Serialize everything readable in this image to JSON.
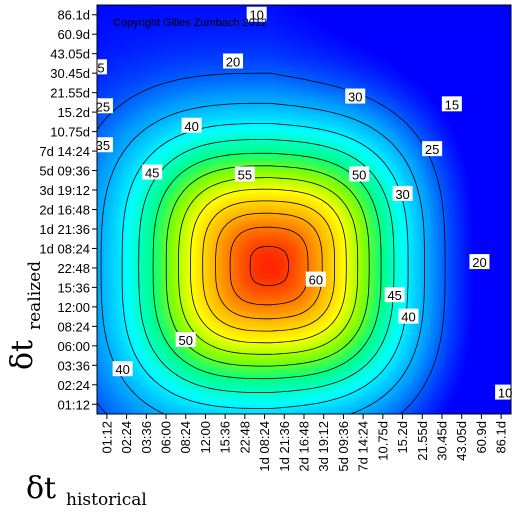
{
  "chart_data": {
    "type": "heatmap",
    "title": "",
    "copyright": "Copyright Gilles Zumbach 2012",
    "xlabel": {
      "main": "δt",
      "sub": "historical"
    },
    "ylabel": {
      "main": "δt",
      "sub": "realized"
    },
    "x_ticks": [
      "01:12",
      "02:24",
      "03:36",
      "06:00",
      "08:24",
      "12:00",
      "15:36",
      "22:48",
      "1d 08:24",
      "1d 21:36",
      "2d 16:48",
      "3d 19:12",
      "5d 09:36",
      "7d 14:24",
      "10.75d",
      "15.2d",
      "21.55d",
      "30.45d",
      "43.05d",
      "60.9d",
      "86.1d"
    ],
    "y_ticks": [
      "01:12",
      "02:24",
      "03:36",
      "06:00",
      "08:24",
      "12:00",
      "15:36",
      "22:48",
      "1d 08:24",
      "1d 21:36",
      "2d 16:48",
      "3d 19:12",
      "5d 09:36",
      "7d 14:24",
      "10.75d",
      "15.2d",
      "21.55d",
      "30.45d",
      "43.05d",
      "60.9d",
      "86.1d"
    ],
    "contour_levels": [
      5,
      10,
      15,
      20,
      25,
      30,
      35,
      40,
      45,
      50,
      55,
      60
    ],
    "contour_labels": [
      {
        "text": "10",
        "x": 7.6,
        "y": 20.0
      },
      {
        "text": "20",
        "x": 6.4,
        "y": 17.6
      },
      {
        "text": "30",
        "x": 12.6,
        "y": 15.8
      },
      {
        "text": "15",
        "x": 17.5,
        "y": 15.4
      },
      {
        "text": "5",
        "x": -0.3,
        "y": 17.3
      },
      {
        "text": "25",
        "x": -0.2,
        "y": 15.3
      },
      {
        "text": "35",
        "x": -0.2,
        "y": 13.3
      },
      {
        "text": "40",
        "x": 4.3,
        "y": 14.3
      },
      {
        "text": "45",
        "x": 2.3,
        "y": 11.9
      },
      {
        "text": "55",
        "x": 7.0,
        "y": 11.8
      },
      {
        "text": "50",
        "x": 12.8,
        "y": 11.8
      },
      {
        "text": "25",
        "x": 16.5,
        "y": 13.1
      },
      {
        "text": "30",
        "x": 15.0,
        "y": 10.8
      },
      {
        "text": "20",
        "x": 18.9,
        "y": 7.3
      },
      {
        "text": "60",
        "x": 10.6,
        "y": 6.4
      },
      {
        "text": "45",
        "x": 14.6,
        "y": 5.6
      },
      {
        "text": "40",
        "x": 15.3,
        "y": 4.5
      },
      {
        "text": "50",
        "x": 4.0,
        "y": 3.3
      },
      {
        "text": "40",
        "x": 0.8,
        "y": 1.8
      },
      {
        "text": "10",
        "x": 20.2,
        "y": 0.6
      }
    ],
    "value_range": [
      0,
      65
    ],
    "colormap": [
      "#0000ff",
      "#0099ff",
      "#00ffff",
      "#00ff88",
      "#88ff00",
      "#ffff00",
      "#ffbb00",
      "#ff6600",
      "#ff0000"
    ]
  }
}
